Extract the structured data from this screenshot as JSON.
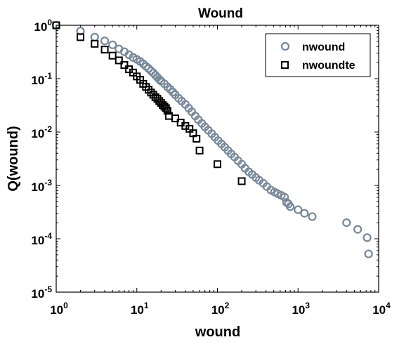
{
  "chart_data": {
    "type": "scatter",
    "title": "Wound",
    "xlabel": "wound",
    "ylabel": "Q(wound)",
    "x_scale": "log",
    "y_scale": "log",
    "xlim": [
      1,
      10000
    ],
    "ylim": [
      1e-05,
      1
    ],
    "x_ticks": [
      {
        "base": "10",
        "exp": "0"
      },
      {
        "base": "10",
        "exp": "1"
      },
      {
        "base": "10",
        "exp": "2"
      },
      {
        "base": "10",
        "exp": "3"
      },
      {
        "base": "10",
        "exp": "4"
      }
    ],
    "y_ticks": [
      {
        "base": "10",
        "exp": "0"
      },
      {
        "base": "10",
        "exp": "-1"
      },
      {
        "base": "10",
        "exp": "-2"
      },
      {
        "base": "10",
        "exp": "-3"
      },
      {
        "base": "10",
        "exp": "-4"
      },
      {
        "base": "10",
        "exp": "-5"
      }
    ],
    "legend_position": "top-right",
    "grid": false,
    "series": [
      {
        "name": "nwound",
        "marker": "circle",
        "color": "#778899",
        "x": [
          1,
          2,
          3,
          4,
          5,
          6,
          7,
          8,
          9,
          10,
          11,
          12,
          13,
          14,
          15,
          16,
          17,
          18,
          19,
          20,
          22,
          24,
          26,
          28,
          30,
          33,
          36,
          40,
          44,
          48,
          53,
          58,
          64,
          70,
          77,
          85,
          93,
          102,
          112,
          123,
          135,
          148,
          163,
          180,
          200,
          220,
          245,
          270,
          300,
          330,
          370,
          410,
          460,
          510,
          560,
          620,
          680,
          720,
          760,
          800,
          1000,
          1200,
          1500,
          4000,
          5500,
          7200,
          7500
        ],
        "y": [
          1,
          0.78,
          0.6,
          0.51,
          0.43,
          0.36,
          0.32,
          0.28,
          0.25,
          0.23,
          0.21,
          0.19,
          0.17,
          0.155,
          0.14,
          0.128,
          0.116,
          0.106,
          0.097,
          0.09,
          0.08,
          0.07,
          0.063,
          0.056,
          0.05,
          0.043,
          0.038,
          0.033,
          0.028,
          0.024,
          0.02,
          0.017,
          0.0145,
          0.0125,
          0.0108,
          0.0093,
          0.008,
          0.0069,
          0.006,
          0.0052,
          0.0045,
          0.0039,
          0.0034,
          0.0029,
          0.0025,
          0.0021,
          0.0018,
          0.0016,
          0.0014,
          0.00125,
          0.0011,
          0.00095,
          0.00082,
          0.00075,
          0.0007,
          0.00065,
          0.0006,
          0.00048,
          0.00045,
          0.0004,
          0.00035,
          0.0003,
          0.00026,
          0.0002,
          0.00015,
          0.000105,
          5.2e-05
        ]
      },
      {
        "name": "nwoundte",
        "marker": "square",
        "color": "#000000",
        "x": [
          1,
          2,
          3,
          4,
          5,
          6,
          7,
          8,
          9,
          10,
          11,
          12,
          13,
          14,
          15,
          16,
          17,
          18,
          19,
          20,
          21,
          22,
          23,
          24,
          25,
          30,
          35,
          40,
          45,
          50,
          55,
          60,
          100,
          200
        ],
        "y": [
          1,
          0.6,
          0.45,
          0.35,
          0.27,
          0.22,
          0.18,
          0.15,
          0.13,
          0.11,
          0.095,
          0.08,
          0.07,
          0.062,
          0.055,
          0.05,
          0.045,
          0.042,
          0.038,
          0.035,
          0.032,
          0.03,
          0.028,
          0.025,
          0.02,
          0.018,
          0.015,
          0.013,
          0.0115,
          0.0095,
          0.0075,
          0.0045,
          0.0025,
          0.0012
        ]
      }
    ]
  }
}
